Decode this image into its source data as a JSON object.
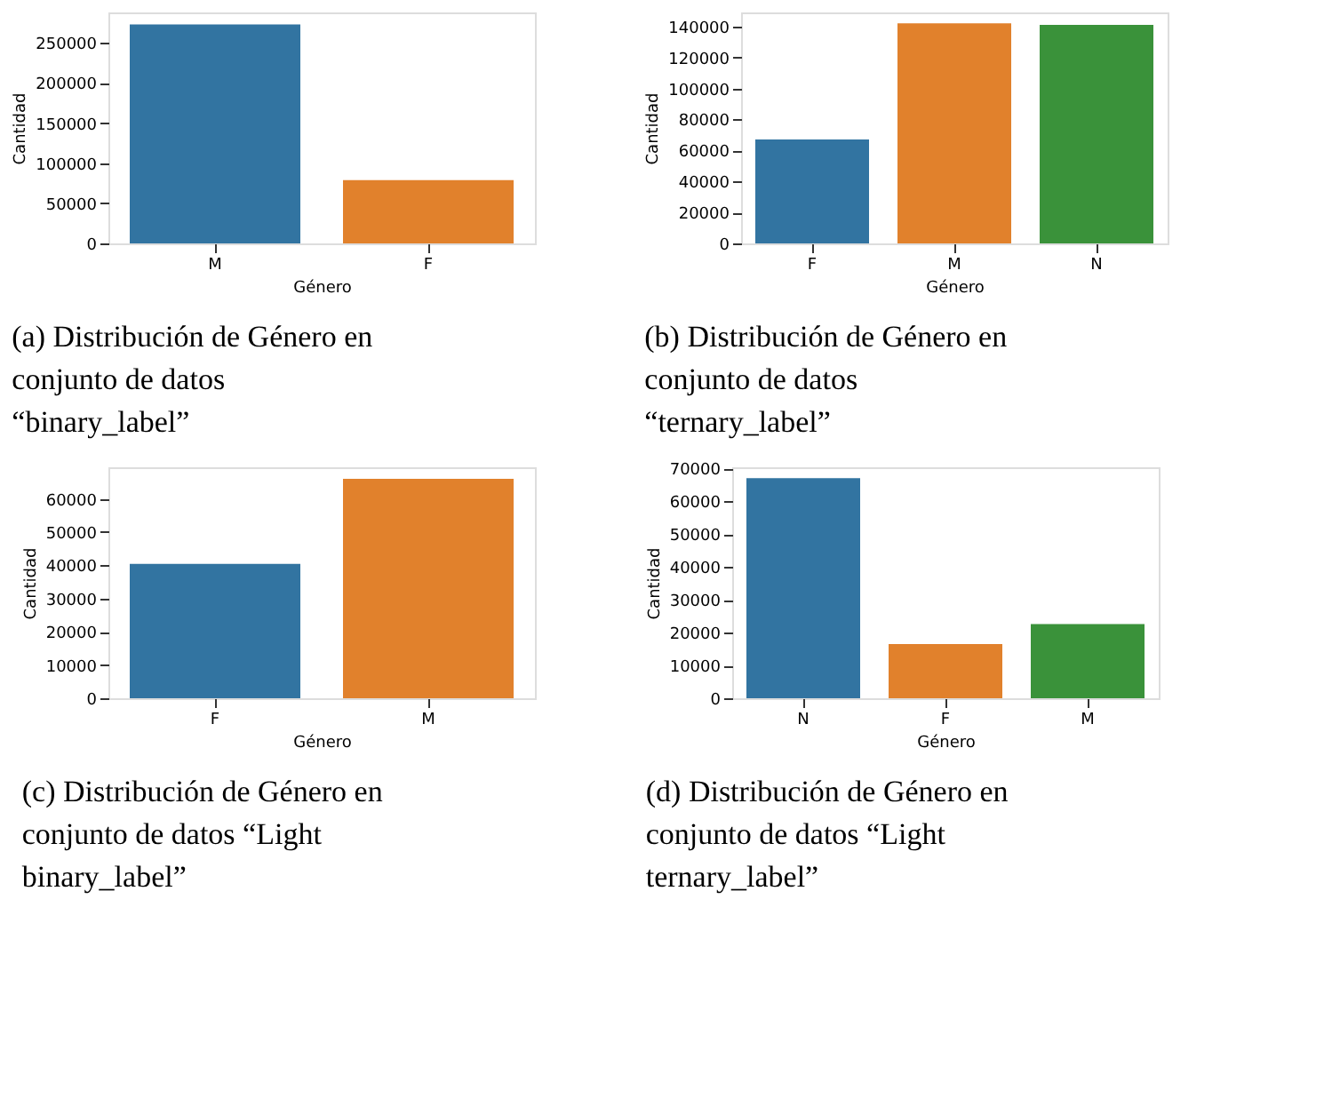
{
  "chart_data": [
    {
      "type": "bar",
      "title": "(a) Distribución de Género en conjunto de datos “binary_label”",
      "xlabel": "Género",
      "ylabel": "Cantidad",
      "categories": [
        "M",
        "F"
      ],
      "values": [
        273000,
        79000
      ],
      "colors": [
        "#3274a1",
        "#e1812c"
      ],
      "ylim": [
        0,
        288000
      ],
      "yticks": [
        0,
        50000,
        100000,
        150000,
        200000,
        250000
      ],
      "grid": false
    },
    {
      "type": "bar",
      "title": "(b) Distribución de Género en conjunto de datos “ternary_label”",
      "xlabel": "Género",
      "ylabel": "Cantidad",
      "categories": [
        "F",
        "M",
        "N"
      ],
      "values": [
        67000,
        142000,
        141000
      ],
      "colors": [
        "#3274a1",
        "#e1812c",
        "#3a923a"
      ],
      "ylim": [
        0,
        149000
      ],
      "yticks": [
        0,
        20000,
        40000,
        60000,
        80000,
        100000,
        120000,
        140000
      ],
      "grid": false
    },
    {
      "type": "bar",
      "title": "(c) Distribución de Género en conjunto de datos “Light binary_label”",
      "xlabel": "Género",
      "ylabel": "Cantidad",
      "categories": [
        "F",
        "M"
      ],
      "values": [
        40400,
        66000
      ],
      "colors": [
        "#3274a1",
        "#e1812c"
      ],
      "ylim": [
        0,
        69500
      ],
      "yticks": [
        0,
        10000,
        20000,
        30000,
        40000,
        50000,
        60000
      ],
      "grid": false
    },
    {
      "type": "bar",
      "title": "(d) Distribución de Género en conjunto de datos “Light ternary_label”",
      "xlabel": "Género",
      "ylabel": "Cantidad",
      "categories": [
        "N",
        "F",
        "M"
      ],
      "values": [
        67100,
        16500,
        22600
      ],
      "colors": [
        "#3274a1",
        "#e1812c",
        "#3a923a"
      ],
      "ylim": [
        0,
        70400
      ],
      "yticks": [
        0,
        10000,
        20000,
        30000,
        40000,
        50000,
        60000,
        70000
      ],
      "grid": false
    }
  ]
}
